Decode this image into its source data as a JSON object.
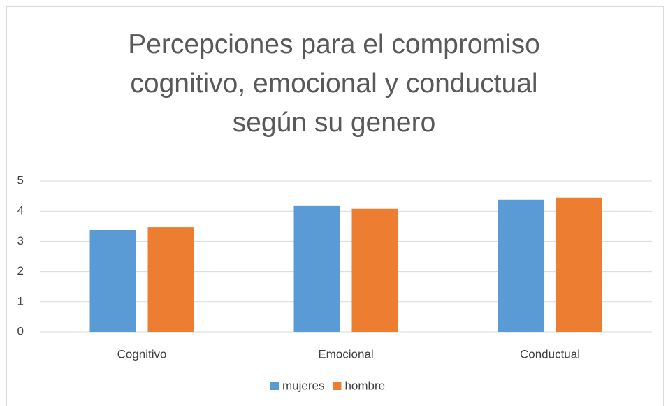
{
  "chart_data": {
    "type": "bar",
    "title": "Percepciones para el compromiso cognitivo, emocional y conductual según su genero",
    "categories": [
      "Cognitivo",
      "Emocional",
      "Conductual"
    ],
    "series": [
      {
        "name": "mujeres",
        "color": "#5b9bd5",
        "values": [
          3.38,
          4.17,
          4.38
        ]
      },
      {
        "name": "hombre",
        "color": "#ed7d31",
        "values": [
          3.47,
          4.08,
          4.45
        ]
      }
    ],
    "ylim": [
      0,
      5
    ],
    "yticks": [
      0,
      1,
      2,
      3,
      4,
      5
    ],
    "grid": true,
    "legend": "bottom"
  }
}
